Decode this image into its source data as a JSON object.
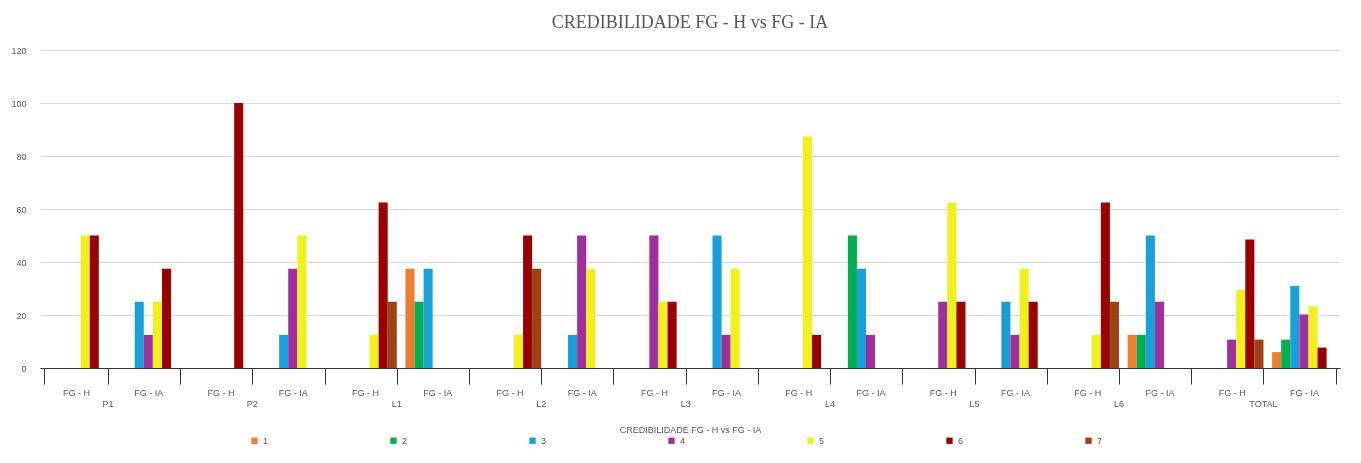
{
  "chart_data": {
    "type": "bar",
    "title": "CREDIBILIDADE FG - H vs FG - IA",
    "xlabel": "CREDIBILIDADE FG - H vs FG - IA",
    "categories": [
      "FG - H",
      "FG - IA",
      "FG - H",
      "FG - IA",
      "FG - H",
      "FG - IA",
      "FG - H",
      "FG - IA",
      "FG - H",
      "FG - IA",
      "FG - H",
      "FG - IA",
      "FG - H",
      "FG - IA",
      "FG - H",
      "FG - IA",
      "FG - H",
      "FG - IA"
    ],
    "annotations": [
      "P1",
      "P2",
      "L1",
      "L2",
      "L3",
      "L4",
      "L5",
      "L6",
      "TOTAL"
    ],
    "series": [
      {
        "name": "1",
        "color": "#ed7d31",
        "values": [
          0,
          0,
          0,
          0,
          0,
          37.5,
          0,
          0,
          0,
          0,
          0,
          0,
          0,
          0,
          0,
          12.5,
          0,
          6
        ]
      },
      {
        "name": "2",
        "color": "#00b050",
        "values": [
          0,
          0,
          0,
          0,
          0,
          25,
          0,
          0,
          0,
          0,
          0,
          50,
          0,
          0,
          0,
          12.5,
          0,
          10.7
        ]
      },
      {
        "name": "3",
        "color": "#1a9fd8",
        "values": [
          0,
          25,
          0,
          12.5,
          0,
          37.5,
          0,
          12.5,
          0,
          50,
          0,
          37.5,
          0,
          25,
          0,
          50,
          0,
          31
        ]
      },
      {
        "name": "4",
        "color": "#9e2f9c",
        "values": [
          0,
          12.5,
          0,
          37.5,
          0,
          0,
          0,
          50,
          50,
          12.5,
          0,
          12.5,
          25,
          12.5,
          0,
          25,
          10.7,
          20.2
        ]
      },
      {
        "name": "5",
        "color": "#f0f01e",
        "values": [
          50,
          25,
          0,
          50,
          12.5,
          0,
          12.5,
          37.5,
          25,
          37.5,
          87.5,
          0,
          62.5,
          37.5,
          12.5,
          0,
          29.5,
          23.3
        ]
      },
      {
        "name": "6",
        "color": "#990000",
        "values": [
          50,
          37.5,
          100,
          0,
          62.5,
          0,
          50,
          0,
          25,
          0,
          12.5,
          0,
          25,
          25,
          62.5,
          0,
          48.5,
          7.7
        ]
      },
      {
        "name": "7",
        "color": "#9c4313",
        "values": [
          0,
          0,
          0,
          0,
          25,
          0,
          37.5,
          0,
          0,
          0,
          0,
          0,
          0,
          0,
          25,
          0,
          10.7,
          0
        ]
      }
    ],
    "ylim": [
      0,
      120
    ],
    "yticks": [
      0,
      20,
      40,
      60,
      80,
      100,
      120
    ],
    "grid": "y",
    "legend": "bottom"
  }
}
